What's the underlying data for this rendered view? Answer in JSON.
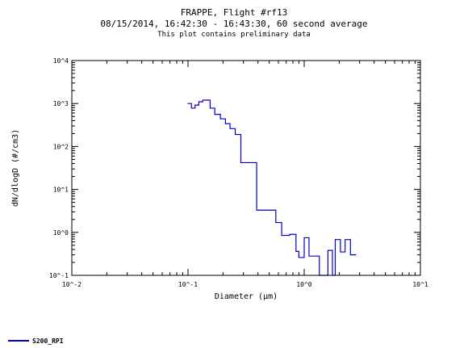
{
  "chart_data": {
    "type": "line",
    "title": "FRAPPE, Flight #rf13",
    "subtitle": "08/15/2014, 16:42:30 - 16:43:30, 60 second average",
    "note": "This plot contains preliminary data",
    "xlabel": "Diameter (µm)",
    "ylabel": "dN/dlogD (#/cm3)",
    "x_scale": "log",
    "y_scale": "log",
    "xlim": [
      0.01,
      10
    ],
    "ylim": [
      0.1,
      10000
    ],
    "x_ticks": [
      {
        "value": 0.01,
        "label": "10^-2"
      },
      {
        "value": 0.1,
        "label": "10^-1"
      },
      {
        "value": 1,
        "label": "10^0"
      },
      {
        "value": 10,
        "label": "10^1"
      }
    ],
    "y_ticks": [
      {
        "value": 0.1,
        "label": "10^-1"
      },
      {
        "value": 1,
        "label": "10^0"
      },
      {
        "value": 10,
        "label": "10^1"
      },
      {
        "value": 100,
        "label": "10^2"
      },
      {
        "value": 1000,
        "label": "10^3"
      },
      {
        "value": 10000,
        "label": "10^4"
      }
    ],
    "grid": false,
    "legend_position": "bottom-left",
    "series": [
      {
        "name": "S200_RPI",
        "color": "#0000cc",
        "style": "step",
        "points": [
          {
            "x": 0.099,
            "y": 1000
          },
          {
            "x": 0.107,
            "y": 780
          },
          {
            "x": 0.115,
            "y": 920
          },
          {
            "x": 0.124,
            "y": 1100
          },
          {
            "x": 0.134,
            "y": 1200
          },
          {
            "x": 0.155,
            "y": 780
          },
          {
            "x": 0.17,
            "y": 560
          },
          {
            "x": 0.19,
            "y": 440
          },
          {
            "x": 0.21,
            "y": 340
          },
          {
            "x": 0.23,
            "y": 260
          },
          {
            "x": 0.255,
            "y": 190
          },
          {
            "x": 0.285,
            "y": 42
          },
          {
            "x": 0.39,
            "y": 3.3
          },
          {
            "x": 0.57,
            "y": 1.7
          },
          {
            "x": 0.64,
            "y": 0.85
          },
          {
            "x": 0.75,
            "y": 0.9
          },
          {
            "x": 0.85,
            "y": 0.36
          },
          {
            "x": 0.9,
            "y": 0.26
          },
          {
            "x": 1.0,
            "y": 0.75
          },
          {
            "x": 1.1,
            "y": 0.28
          },
          {
            "x": 1.22,
            "y": 0.28
          },
          {
            "x": 1.35,
            "y": 0.1
          },
          {
            "x": 1.6,
            "y": 0.38
          },
          {
            "x": 1.75,
            "y": 0.1
          },
          {
            "x": 1.85,
            "y": 0.68
          },
          {
            "x": 2.05,
            "y": 0.35
          },
          {
            "x": 2.25,
            "y": 0.68
          },
          {
            "x": 2.5,
            "y": 0.3
          }
        ],
        "x_end": 2.8
      }
    ]
  }
}
